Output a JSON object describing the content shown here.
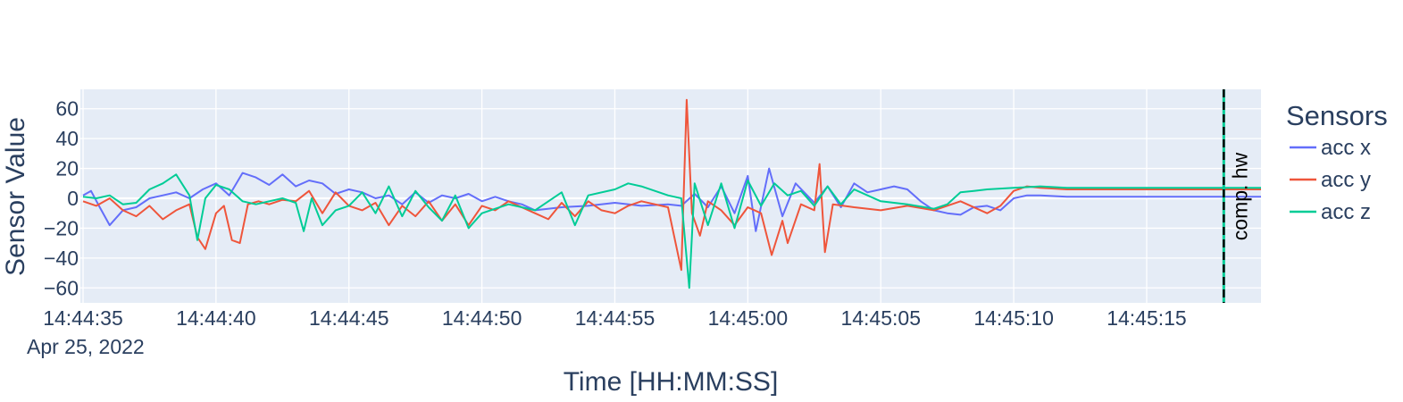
{
  "chart_data": {
    "type": "line",
    "date_label": "Apr 25, 2022",
    "xlabel": "Time [HH:MM:SS]",
    "ylabel": "Sensor Value",
    "xlim": [
      "14:44:34.9",
      "14:45:19.3"
    ],
    "ylim": [
      -70,
      73
    ],
    "x_ticks": [
      "14:44:35",
      "14:44:40",
      "14:44:45",
      "14:44:50",
      "14:44:55",
      "14:45:00",
      "14:45:05",
      "14:45:10",
      "14:45:15"
    ],
    "y_ticks": [
      60,
      40,
      20,
      0,
      -20,
      -40,
      -60
    ],
    "grid": true,
    "plot_background": "#e5ecf6",
    "legend": {
      "title": "Sensors",
      "placement": "right"
    },
    "series": [
      {
        "name": "acc x",
        "color": "#636efa",
        "points": [
          [
            "14:44:35.0",
            2
          ],
          [
            "14:44:35.3",
            5
          ],
          [
            "14:44:35.6",
            -5
          ],
          [
            "14:44:36.0",
            -18
          ],
          [
            "14:44:36.5",
            -8
          ],
          [
            "14:44:37.0",
            -6
          ],
          [
            "14:44:37.5",
            0
          ],
          [
            "14:44:38.0",
            2
          ],
          [
            "14:44:38.5",
            4
          ],
          [
            "14:44:39.0",
            0
          ],
          [
            "14:44:39.5",
            6
          ],
          [
            "14:44:40.0",
            10
          ],
          [
            "14:44:40.5",
            2
          ],
          [
            "14:44:41.0",
            17
          ],
          [
            "14:44:41.5",
            14
          ],
          [
            "14:44:42.0",
            9
          ],
          [
            "14:44:42.5",
            16
          ],
          [
            "14:44:43.0",
            8
          ],
          [
            "14:44:43.5",
            12
          ],
          [
            "14:44:44.0",
            10
          ],
          [
            "14:44:44.5",
            3
          ],
          [
            "14:44:45.0",
            6
          ],
          [
            "14:44:45.5",
            4
          ],
          [
            "14:44:46.0",
            0
          ],
          [
            "14:44:46.5",
            2
          ],
          [
            "14:44:47.0",
            -4
          ],
          [
            "14:44:47.5",
            4
          ],
          [
            "14:44:48.0",
            -3
          ],
          [
            "14:44:48.5",
            2
          ],
          [
            "14:44:49.0",
            0
          ],
          [
            "14:44:49.5",
            3
          ],
          [
            "14:44:50.0",
            -2
          ],
          [
            "14:44:50.5",
            1
          ],
          [
            "14:44:51.0",
            -2
          ],
          [
            "14:44:51.5",
            -4
          ],
          [
            "14:44:52.0",
            -8
          ],
          [
            "14:44:53.0",
            -6
          ],
          [
            "14:44:54.0",
            -5
          ],
          [
            "14:44:55.0",
            -3
          ],
          [
            "14:44:56.0",
            -5
          ],
          [
            "14:44:57.0",
            -4
          ],
          [
            "14:44:57.5",
            -5
          ],
          [
            "14:44:58.0",
            3
          ],
          [
            "14:44:58.5",
            -6
          ],
          [
            "14:44:59.0",
            8
          ],
          [
            "14:44:59.5",
            -10
          ],
          [
            "14:45:00.0",
            15
          ],
          [
            "14:45:00.3",
            -22
          ],
          [
            "14:45:00.8",
            20
          ],
          [
            "14:45:01.3",
            -12
          ],
          [
            "14:45:01.8",
            10
          ],
          [
            "14:45:02.5",
            -3
          ],
          [
            "14:45:03.0",
            8
          ],
          [
            "14:45:03.5",
            -6
          ],
          [
            "14:45:04.0",
            10
          ],
          [
            "14:45:04.5",
            4
          ],
          [
            "14:45:05.0",
            6
          ],
          [
            "14:45:05.5",
            8
          ],
          [
            "14:45:06.0",
            6
          ],
          [
            "14:45:06.5",
            -2
          ],
          [
            "14:45:07.0",
            -8
          ],
          [
            "14:45:07.5",
            -10
          ],
          [
            "14:45:08.0",
            -11
          ],
          [
            "14:45:08.5",
            -6
          ],
          [
            "14:45:09.0",
            -5
          ],
          [
            "14:45:09.5",
            -8
          ],
          [
            "14:45:10.0",
            0
          ],
          [
            "14:45:10.5",
            2
          ],
          [
            "14:45:11.0",
            2
          ],
          [
            "14:45:12.0",
            1
          ],
          [
            "14:45:14.0",
            1
          ],
          [
            "14:45:16.0",
            1
          ],
          [
            "14:45:19.3",
            1
          ]
        ]
      },
      {
        "name": "acc y",
        "color": "#ef553b",
        "points": [
          [
            "14:44:35.0",
            -2
          ],
          [
            "14:44:35.5",
            -5
          ],
          [
            "14:44:36.0",
            0
          ],
          [
            "14:44:36.5",
            -8
          ],
          [
            "14:44:37.0",
            -12
          ],
          [
            "14:44:37.5",
            -5
          ],
          [
            "14:44:38.0",
            -14
          ],
          [
            "14:44:38.5",
            -8
          ],
          [
            "14:44:39.0",
            -4
          ],
          [
            "14:44:39.3",
            -26
          ],
          [
            "14:44:39.6",
            -34
          ],
          [
            "14:44:40.0",
            -10
          ],
          [
            "14:44:40.3",
            -5
          ],
          [
            "14:44:40.6",
            -28
          ],
          [
            "14:44:40.9",
            -30
          ],
          [
            "14:44:41.2",
            -4
          ],
          [
            "14:44:41.6",
            -2
          ],
          [
            "14:44:42.0",
            -4
          ],
          [
            "14:44:42.5",
            -1
          ],
          [
            "14:44:43.0",
            -2
          ],
          [
            "14:44:43.5",
            5
          ],
          [
            "14:44:44.0",
            -10
          ],
          [
            "14:44:44.5",
            4
          ],
          [
            "14:44:45.0",
            -5
          ],
          [
            "14:44:45.5",
            -8
          ],
          [
            "14:44:46.0",
            -3
          ],
          [
            "14:44:46.5",
            -18
          ],
          [
            "14:44:47.0",
            -5
          ],
          [
            "14:44:47.5",
            -12
          ],
          [
            "14:44:48.0",
            -2
          ],
          [
            "14:44:48.5",
            -15
          ],
          [
            "14:44:49.0",
            -4
          ],
          [
            "14:44:49.5",
            -18
          ],
          [
            "14:44:50.0",
            -5
          ],
          [
            "14:44:50.5",
            -8
          ],
          [
            "14:44:51.0",
            -2
          ],
          [
            "14:44:52.0",
            -10
          ],
          [
            "14:44:52.5",
            -14
          ],
          [
            "14:44:53.0",
            -3
          ],
          [
            "14:44:53.5",
            -12
          ],
          [
            "14:44:54.0",
            -2
          ],
          [
            "14:44:54.5",
            -8
          ],
          [
            "14:44:55.0",
            -10
          ],
          [
            "14:44:55.5",
            -5
          ],
          [
            "14:44:56.0",
            -2
          ],
          [
            "14:44:57.0",
            -6
          ],
          [
            "14:44:57.5",
            -48
          ],
          [
            "14:44:57.7",
            66
          ],
          [
            "14:44:57.9",
            -10
          ],
          [
            "14:44:58.2",
            -25
          ],
          [
            "14:44:58.5",
            -2
          ],
          [
            "14:44:59.0",
            -8
          ],
          [
            "14:44:59.5",
            -18
          ],
          [
            "14:45:00.0",
            -6
          ],
          [
            "14:45:00.5",
            -10
          ],
          [
            "14:45:00.9",
            -38
          ],
          [
            "14:45:01.3",
            -15
          ],
          [
            "14:45:01.5",
            -30
          ],
          [
            "14:45:02.0",
            -4
          ],
          [
            "14:45:02.5",
            -8
          ],
          [
            "14:45:02.7",
            23
          ],
          [
            "14:45:02.9",
            -36
          ],
          [
            "14:45:03.2",
            -4
          ],
          [
            "14:45:04.0",
            -6
          ],
          [
            "14:45:05.0",
            -8
          ],
          [
            "14:45:06.0",
            -5
          ],
          [
            "14:45:07.0",
            -8
          ],
          [
            "14:45:08.0",
            -2
          ],
          [
            "14:45:09.0",
            -10
          ],
          [
            "14:45:09.5",
            -5
          ],
          [
            "14:45:10.0",
            5
          ],
          [
            "14:45:10.5",
            8
          ],
          [
            "14:45:11.0",
            7
          ],
          [
            "14:45:12.0",
            6
          ],
          [
            "14:45:14.0",
            6
          ],
          [
            "14:45:16.0",
            6
          ],
          [
            "14:45:19.3",
            6
          ]
        ]
      },
      {
        "name": "acc z",
        "color": "#00cc96",
        "points": [
          [
            "14:44:35.0",
            1
          ],
          [
            "14:44:35.5",
            0
          ],
          [
            "14:44:36.0",
            2
          ],
          [
            "14:44:36.5",
            -4
          ],
          [
            "14:44:37.0",
            -3
          ],
          [
            "14:44:37.5",
            6
          ],
          [
            "14:44:38.0",
            10
          ],
          [
            "14:44:38.5",
            16
          ],
          [
            "14:44:39.0",
            2
          ],
          [
            "14:44:39.3",
            -28
          ],
          [
            "14:44:39.6",
            0
          ],
          [
            "14:44:40.0",
            9
          ],
          [
            "14:44:40.5",
            6
          ],
          [
            "14:44:41.0",
            -2
          ],
          [
            "14:44:41.5",
            -4
          ],
          [
            "14:44:42.0",
            -2
          ],
          [
            "14:44:42.5",
            0
          ],
          [
            "14:44:43.0",
            -3
          ],
          [
            "14:44:43.3",
            -22
          ],
          [
            "14:44:43.6",
            0
          ],
          [
            "14:44:44.0",
            -18
          ],
          [
            "14:44:44.5",
            -8
          ],
          [
            "14:44:45.0",
            -5
          ],
          [
            "14:44:45.5",
            4
          ],
          [
            "14:44:46.0",
            -10
          ],
          [
            "14:44:46.5",
            8
          ],
          [
            "14:44:47.0",
            -12
          ],
          [
            "14:44:47.5",
            5
          ],
          [
            "14:44:48.0",
            -6
          ],
          [
            "14:44:48.5",
            -15
          ],
          [
            "14:44:49.0",
            2
          ],
          [
            "14:44:49.5",
            -20
          ],
          [
            "14:44:50.0",
            -10
          ],
          [
            "14:44:51.0",
            -4
          ],
          [
            "14:44:52.0",
            -8
          ],
          [
            "14:44:53.0",
            4
          ],
          [
            "14:44:53.5",
            -18
          ],
          [
            "14:44:54.0",
            2
          ],
          [
            "14:44:55.0",
            6
          ],
          [
            "14:44:55.5",
            10
          ],
          [
            "14:44:56.0",
            8
          ],
          [
            "14:44:57.0",
            2
          ],
          [
            "14:44:57.5",
            0
          ],
          [
            "14:44:57.8",
            -60
          ],
          [
            "14:44:58.0",
            10
          ],
          [
            "14:44:58.5",
            -18
          ],
          [
            "14:44:59.0",
            10
          ],
          [
            "14:44:59.5",
            -20
          ],
          [
            "14:45:00.0",
            12
          ],
          [
            "14:45:00.5",
            -5
          ],
          [
            "14:45:01.0",
            10
          ],
          [
            "14:45:01.5",
            2
          ],
          [
            "14:45:02.0",
            5
          ],
          [
            "14:45:02.5",
            -5
          ],
          [
            "14:45:03.0",
            8
          ],
          [
            "14:45:03.5",
            -4
          ],
          [
            "14:45:04.0",
            6
          ],
          [
            "14:45:05.0",
            -2
          ],
          [
            "14:45:06.0",
            -4
          ],
          [
            "14:45:07.0",
            -7
          ],
          [
            "14:45:07.5",
            -4
          ],
          [
            "14:45:08.0",
            4
          ],
          [
            "14:45:08.5",
            5
          ],
          [
            "14:45:09.0",
            6
          ],
          [
            "14:45:10.0",
            7
          ],
          [
            "14:45:11.0",
            8
          ],
          [
            "14:45:12.0",
            7
          ],
          [
            "14:45:14.0",
            7
          ],
          [
            "14:45:16.0",
            7
          ],
          [
            "14:45:19.3",
            7
          ]
        ]
      }
    ],
    "annotations": [
      {
        "x": "14:45:17.9",
        "text": "comp. hw",
        "line_style": "dashed",
        "line_color": "#000000",
        "marker_color": "#00cc96"
      }
    ]
  }
}
